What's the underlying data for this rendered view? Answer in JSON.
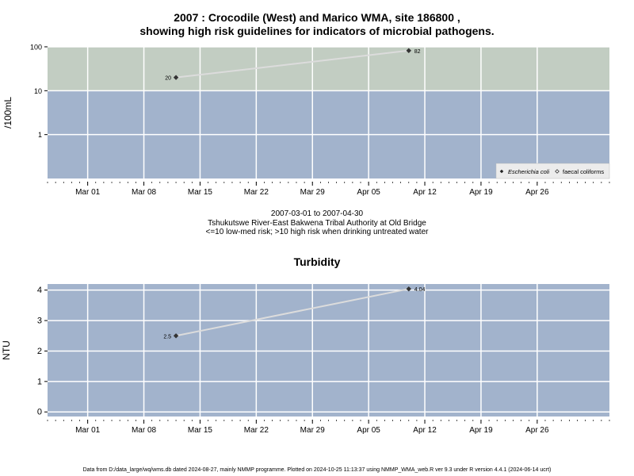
{
  "chart_data": [
    {
      "type": "line",
      "title": "2007 : Crocodile (West) and Marico WMA, site 186800 ,",
      "subtitle": "showing high risk guidelines for indicators of microbial pathogens.",
      "ylabel": "/100mL",
      "y_scale": "log",
      "ylim": [
        0.1,
        100
      ],
      "y_ticks": [
        "1",
        "10",
        "100"
      ],
      "xlim": [
        "2007-02-24",
        "2007-05-05"
      ],
      "x_ticks": [
        "Mar 01",
        "Mar 08",
        "Mar 15",
        "Mar 22",
        "Mar 29",
        "Apr 05",
        "Apr 12",
        "Apr 19",
        "Apr 26"
      ],
      "x_tick_dates": [
        "2007-03-01",
        "2007-03-08",
        "2007-03-15",
        "2007-03-22",
        "2007-03-29",
        "2007-04-05",
        "2007-04-12",
        "2007-04-19",
        "2007-04-26"
      ],
      "x_minor_ticks": "daily",
      "grid": true,
      "bands": [
        {
          "from": 0.1,
          "to": 10,
          "color": "#a2b3cc"
        },
        {
          "from": 10,
          "to": 100,
          "color": "#c2cdc2"
        }
      ],
      "series": [
        {
          "name": "Escherichia coli",
          "x": [
            "2007-03-12",
            "2007-04-10"
          ],
          "y": [
            20,
            82
          ],
          "labels": [
            "20",
            "82"
          ],
          "marker": "filled-diamond"
        }
      ],
      "legend": {
        "position": "bottom-right",
        "entries": [
          "Escherichia coli",
          "faecal coliforms"
        ]
      },
      "below_text": [
        "2007-03-01 to 2007-04-30",
        "Tshukutswe River-East Bakwena Tribal Authority at Old Bridge",
        "<=10 low-med risk; >10 high risk when drinking untreated water"
      ]
    },
    {
      "type": "line",
      "title": "Turbidity",
      "ylabel": "NTU",
      "ylim": [
        -0.15,
        4.2
      ],
      "y_ticks": [
        "0",
        "1",
        "2",
        "3",
        "4"
      ],
      "xlim": [
        "2007-02-24",
        "2007-05-05"
      ],
      "x_ticks": [
        "Mar 01",
        "Mar 08",
        "Mar 15",
        "Mar 22",
        "Mar 29",
        "Apr 05",
        "Apr 12",
        "Apr 19",
        "Apr 26"
      ],
      "x_tick_dates": [
        "2007-03-01",
        "2007-03-08",
        "2007-03-15",
        "2007-03-22",
        "2007-03-29",
        "2007-04-05",
        "2007-04-12",
        "2007-04-19",
        "2007-04-26"
      ],
      "x_minor_ticks": "daily",
      "grid": true,
      "series": [
        {
          "x": [
            "2007-03-12",
            "2007-04-10"
          ],
          "y": [
            2.5,
            4.04
          ],
          "labels": [
            "2.5",
            "4.04"
          ],
          "marker": "filled-diamond"
        }
      ]
    }
  ],
  "colors": {
    "high_band": "#c2cdc2",
    "low_band": "#a2b3cc",
    "plot_bg": "#a2b3cc",
    "grid": "#ffffff",
    "line": "#dcdcdc",
    "marker": "#333333"
  },
  "footer": "Data from D:/data_large/wq/wms.db dated 2024-08-27, mainly NMMP programme. Plotted on 2024-10-25 11:13:37 using NMMP_WMA_web.R ver 9.3 under R version 4.4.1 (2024-06-14 ucrt)"
}
